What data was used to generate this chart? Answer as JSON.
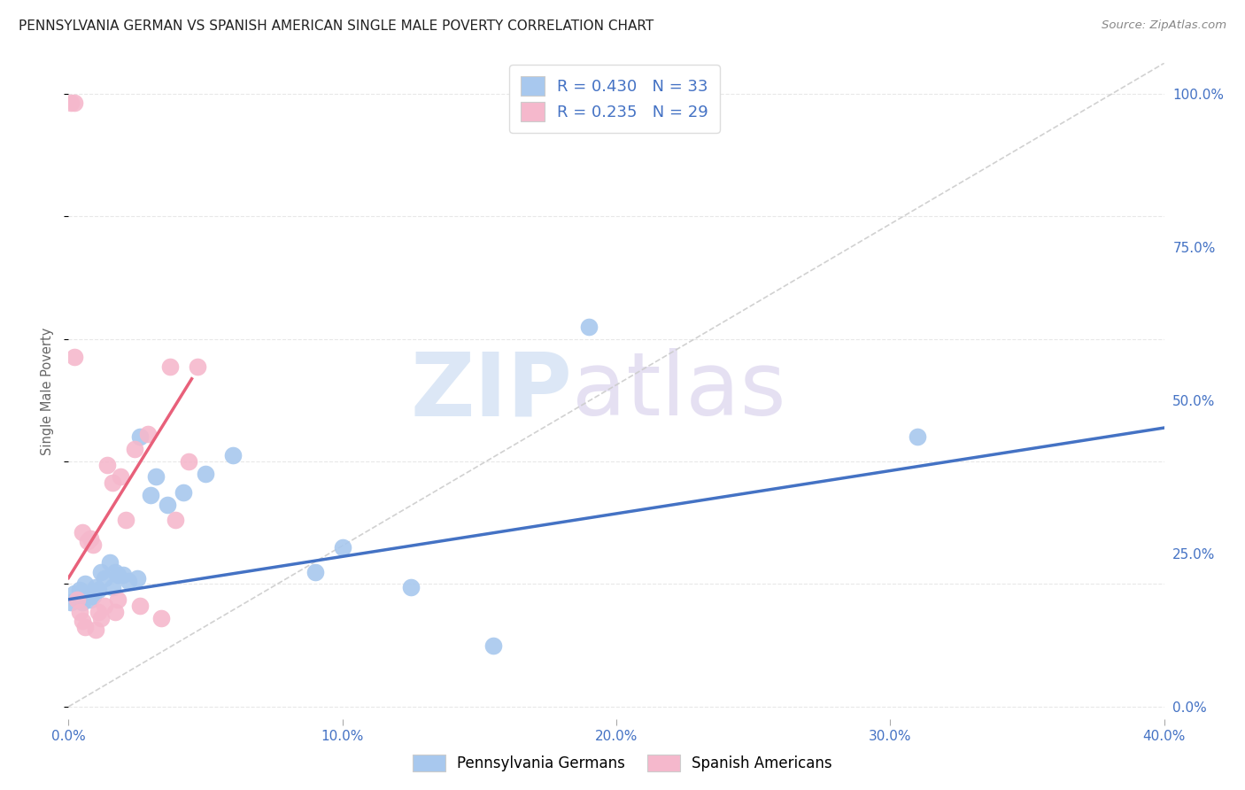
{
  "title": "PENNSYLVANIA GERMAN VS SPANISH AMERICAN SINGLE MALE POVERTY CORRELATION CHART",
  "source": "Source: ZipAtlas.com",
  "ylabel": "Single Male Poverty",
  "xlim": [
    0.0,
    0.4
  ],
  "ylim": [
    -0.02,
    1.05
  ],
  "xticks": [
    0.0,
    0.1,
    0.2,
    0.3,
    0.4
  ],
  "xticklabels": [
    "0.0%",
    "10.0%",
    "20.0%",
    "30.0%",
    "40.0%"
  ],
  "yticks_right": [
    0.0,
    0.25,
    0.5,
    0.75,
    1.0
  ],
  "yticklabels_right": [
    "0.0%",
    "25.0%",
    "50.0%",
    "75.0%",
    "100.0%"
  ],
  "blue_color": "#A8C8EE",
  "pink_color": "#F5B8CC",
  "blue_line_color": "#4472C4",
  "pink_line_color": "#E8607A",
  "diagonal_color": "#CCCCCC",
  "r_blue": 0.43,
  "n_blue": 33,
  "r_pink": 0.235,
  "n_pink": 29,
  "legend_label_blue": "Pennsylvania Germans",
  "legend_label_pink": "Spanish Americans",
  "blue_points": [
    [
      0.001,
      0.17
    ],
    [
      0.002,
      0.185
    ],
    [
      0.003,
      0.175
    ],
    [
      0.004,
      0.19
    ],
    [
      0.005,
      0.17
    ],
    [
      0.006,
      0.2
    ],
    [
      0.007,
      0.185
    ],
    [
      0.008,
      0.175
    ],
    [
      0.009,
      0.18
    ],
    [
      0.01,
      0.195
    ],
    [
      0.011,
      0.19
    ],
    [
      0.012,
      0.22
    ],
    [
      0.013,
      0.21
    ],
    [
      0.015,
      0.235
    ],
    [
      0.016,
      0.195
    ],
    [
      0.017,
      0.22
    ],
    [
      0.018,
      0.215
    ],
    [
      0.02,
      0.215
    ],
    [
      0.022,
      0.205
    ],
    [
      0.025,
      0.21
    ],
    [
      0.026,
      0.44
    ],
    [
      0.03,
      0.345
    ],
    [
      0.032,
      0.375
    ],
    [
      0.036,
      0.33
    ],
    [
      0.042,
      0.35
    ],
    [
      0.05,
      0.38
    ],
    [
      0.06,
      0.41
    ],
    [
      0.09,
      0.22
    ],
    [
      0.1,
      0.26
    ],
    [
      0.125,
      0.195
    ],
    [
      0.155,
      0.1
    ],
    [
      0.19,
      0.62
    ],
    [
      0.31,
      0.44
    ]
  ],
  "pink_points": [
    [
      0.001,
      0.985
    ],
    [
      0.002,
      0.985
    ],
    [
      0.002,
      0.57
    ],
    [
      0.003,
      0.175
    ],
    [
      0.004,
      0.155
    ],
    [
      0.005,
      0.14
    ],
    [
      0.005,
      0.285
    ],
    [
      0.006,
      0.13
    ],
    [
      0.007,
      0.27
    ],
    [
      0.008,
      0.275
    ],
    [
      0.009,
      0.265
    ],
    [
      0.01,
      0.125
    ],
    [
      0.011,
      0.155
    ],
    [
      0.012,
      0.145
    ],
    [
      0.013,
      0.165
    ],
    [
      0.014,
      0.395
    ],
    [
      0.016,
      0.365
    ],
    [
      0.017,
      0.155
    ],
    [
      0.018,
      0.175
    ],
    [
      0.019,
      0.375
    ],
    [
      0.021,
      0.305
    ],
    [
      0.024,
      0.42
    ],
    [
      0.026,
      0.165
    ],
    [
      0.029,
      0.445
    ],
    [
      0.034,
      0.145
    ],
    [
      0.037,
      0.555
    ],
    [
      0.039,
      0.305
    ],
    [
      0.044,
      0.4
    ],
    [
      0.047,
      0.555
    ]
  ],
  "blue_line": {
    "x0": 0.0,
    "y0": 0.175,
    "x1": 0.4,
    "y1": 0.455
  },
  "pink_line": {
    "x0": 0.0,
    "y0": 0.21,
    "x1": 0.045,
    "y1": 0.535
  },
  "diag_line": {
    "x0": 0.0,
    "y0": 0.0,
    "x1": 0.4,
    "y1": 1.05
  },
  "watermark_zip": "ZIP",
  "watermark_atlas": "atlas",
  "background_color": "#FFFFFF",
  "grid_color": "#E8E8E8",
  "legend_text_color": "#4472C4",
  "title_color": "#222222",
  "source_color": "#888888",
  "tick_color": "#4472C4",
  "ylabel_color": "#666666"
}
